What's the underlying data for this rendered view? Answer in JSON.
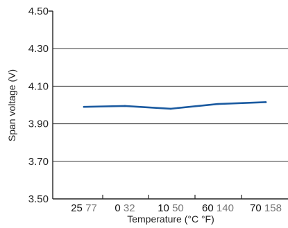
{
  "chart_data": {
    "type": "line",
    "title": "",
    "xlabel": "Temperature (°C °F)",
    "ylabel": "Span voltage (V)",
    "ylim": [
      3.5,
      4.5
    ],
    "yticks": [
      "4.50",
      "4.30",
      "4.10",
      "3.90",
      "3.70",
      "3.50"
    ],
    "grid": "horizontal",
    "categories": [
      {
        "c": "25",
        "f": "77"
      },
      {
        "c": "0",
        "f": "32"
      },
      {
        "c": "10",
        "f": "50"
      },
      {
        "c": "60",
        "f": "140"
      },
      {
        "c": "70",
        "f": "158"
      }
    ],
    "series": [
      {
        "values": [
          3.99,
          3.995,
          3.98,
          4.005,
          4.015
        ],
        "color": "#1a5aa0"
      }
    ]
  }
}
